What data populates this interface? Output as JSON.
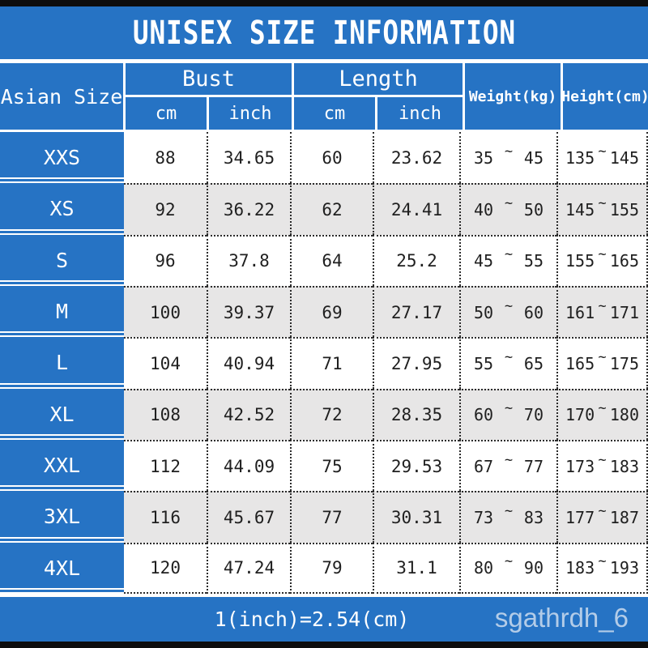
{
  "title": "UNISEX SIZE INFORMATION",
  "table": {
    "corner": "Asian Size",
    "group_bust": "Bust",
    "group_length": "Length",
    "sub_cm": "cm",
    "sub_inch": "inch",
    "weight_header": "Weight(kg)",
    "height_header": "Height(cm)",
    "range_separator": "~",
    "rows": [
      {
        "size": "XXS",
        "bust_cm": "88",
        "bust_inch": "34.65",
        "length_cm": "60",
        "length_inch": "23.62",
        "weight_min": "35",
        "weight_max": "45",
        "height_min": "135",
        "height_max": "145"
      },
      {
        "size": "XS",
        "bust_cm": "92",
        "bust_inch": "36.22",
        "length_cm": "62",
        "length_inch": "24.41",
        "weight_min": "40",
        "weight_max": "50",
        "height_min": "145",
        "height_max": "155"
      },
      {
        "size": "S",
        "bust_cm": "96",
        "bust_inch": "37.8",
        "length_cm": "64",
        "length_inch": "25.2",
        "weight_min": "45",
        "weight_max": "55",
        "height_min": "155",
        "height_max": "165"
      },
      {
        "size": "M",
        "bust_cm": "100",
        "bust_inch": "39.37",
        "length_cm": "69",
        "length_inch": "27.17",
        "weight_min": "50",
        "weight_max": "60",
        "height_min": "161",
        "height_max": "171"
      },
      {
        "size": "L",
        "bust_cm": "104",
        "bust_inch": "40.94",
        "length_cm": "71",
        "length_inch": "27.95",
        "weight_min": "55",
        "weight_max": "65",
        "height_min": "165",
        "height_max": "175"
      },
      {
        "size": "XL",
        "bust_cm": "108",
        "bust_inch": "42.52",
        "length_cm": "72",
        "length_inch": "28.35",
        "weight_min": "60",
        "weight_max": "70",
        "height_min": "170",
        "height_max": "180"
      },
      {
        "size": "XXL",
        "bust_cm": "112",
        "bust_inch": "44.09",
        "length_cm": "75",
        "length_inch": "29.53",
        "weight_min": "67",
        "weight_max": "77",
        "height_min": "173",
        "height_max": "183"
      },
      {
        "size": "3XL",
        "bust_cm": "116",
        "bust_inch": "45.67",
        "length_cm": "77",
        "length_inch": "30.31",
        "weight_min": "73",
        "weight_max": "83",
        "height_min": "177",
        "height_max": "187"
      },
      {
        "size": "4XL",
        "bust_cm": "120",
        "bust_inch": "47.24",
        "length_cm": "79",
        "length_inch": "31.1",
        "weight_min": "80",
        "weight_max": "90",
        "height_min": "183",
        "height_max": "193"
      }
    ]
  },
  "footer": {
    "conversion_note": "1(inch)=2.54(cm)",
    "watermark": "sgathrdh_6"
  },
  "colors": {
    "accent_blue": "#2673c4",
    "alt_row_gray": "#e7e6e6",
    "dotted_line": "#2b2b2b",
    "strip_black": "#0d0d0d",
    "watermark_text": "#c3d6ec"
  },
  "chart_data": {
    "type": "table",
    "title": "UNISEX SIZE INFORMATION",
    "columns": [
      "Asian Size",
      "Bust cm",
      "Bust inch",
      "Length cm",
      "Length inch",
      "Weight(kg)",
      "Height(cm)"
    ],
    "rows": [
      [
        "XXS",
        88,
        34.65,
        60,
        23.62,
        "35 ~ 45",
        "135 ~ 145"
      ],
      [
        "XS",
        92,
        36.22,
        62,
        24.41,
        "40 ~ 50",
        "145 ~ 155"
      ],
      [
        "S",
        96,
        37.8,
        64,
        25.2,
        "45 ~ 55",
        "155 ~ 165"
      ],
      [
        "M",
        100,
        39.37,
        69,
        27.17,
        "50 ~ 60",
        "161 ~ 171"
      ],
      [
        "L",
        104,
        40.94,
        71,
        27.95,
        "55 ~ 65",
        "165 ~ 175"
      ],
      [
        "XL",
        108,
        42.52,
        72,
        28.35,
        "60 ~ 70",
        "170 ~ 180"
      ],
      [
        "XXL",
        112,
        44.09,
        75,
        29.53,
        "67 ~ 77",
        "173 ~ 183"
      ],
      [
        "3XL",
        116,
        45.67,
        77,
        30.31,
        "73 ~ 83",
        "177 ~ 187"
      ],
      [
        "4XL",
        120,
        47.24,
        79,
        31.1,
        "80 ~ 90",
        "183 ~ 193"
      ]
    ],
    "note": "1(inch)=2.54(cm)"
  }
}
